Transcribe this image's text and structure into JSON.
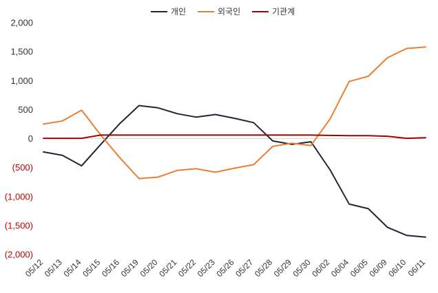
{
  "chart_data": {
    "type": "line",
    "title": "",
    "xlabel": "",
    "ylabel": "",
    "ylim": [
      -2000,
      2000
    ],
    "yticks": [
      2000,
      1500,
      1000,
      500,
      0,
      -500,
      -1000,
      -1500,
      -2000
    ],
    "ytick_labels": [
      "2,000",
      "1,500",
      "1,000",
      "500",
      "0",
      "(500)",
      "(1,000)",
      "(1,500)",
      "(2,000)"
    ],
    "negative_tick_color": "#c00000",
    "grid": false,
    "legend_position": "top-center",
    "categories": [
      "05/12",
      "05/13",
      "05/14",
      "05/15",
      "05/16",
      "05/19",
      "05/20",
      "05/21",
      "05/22",
      "05/23",
      "05/26",
      "05/27",
      "05/28",
      "05/29",
      "05/30",
      "06/02",
      "06/04",
      "06/05",
      "06/09",
      "06/10",
      "06/11"
    ],
    "series": [
      {
        "name": "개인",
        "color": "#1f2633",
        "values": [
          -230,
          -290,
          -470,
          -100,
          260,
          570,
          530,
          430,
          370,
          415,
          350,
          275,
          -40,
          -100,
          -55,
          -540,
          -1130,
          -1210,
          -1530,
          -1670,
          -1700
        ]
      },
      {
        "name": "외국인",
        "color": "#ed7d31",
        "values": [
          250,
          305,
          490,
          60,
          -330,
          -690,
          -665,
          -550,
          -520,
          -580,
          -510,
          -450,
          -135,
          -80,
          -120,
          340,
          985,
          1075,
          1395,
          1555,
          1580
        ]
      },
      {
        "name": "기관계",
        "color": "#a00000",
        "values": [
          5,
          5,
          5,
          60,
          60,
          60,
          60,
          60,
          60,
          60,
          60,
          60,
          60,
          60,
          60,
          55,
          50,
          50,
          40,
          5,
          15
        ]
      }
    ]
  }
}
